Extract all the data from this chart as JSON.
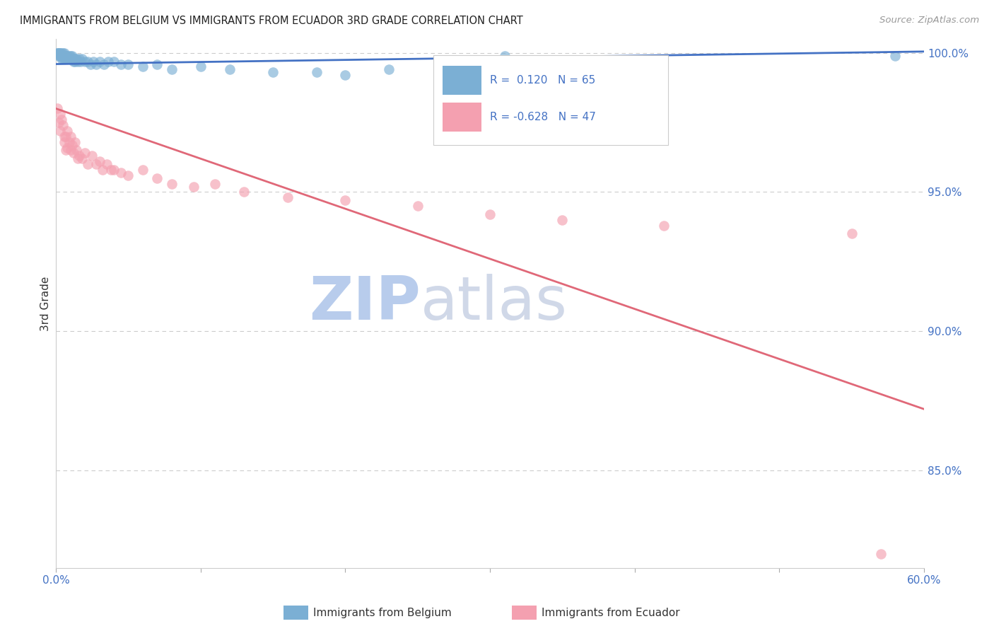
{
  "title": "IMMIGRANTS FROM BELGIUM VS IMMIGRANTS FROM ECUADOR 3RD GRADE CORRELATION CHART",
  "source": "Source: ZipAtlas.com",
  "ylabel": "3rd Grade",
  "xlabel_belgium": "Immigrants from Belgium",
  "xlabel_ecuador": "Immigrants from Ecuador",
  "xlim": [
    0.0,
    0.6
  ],
  "ylim": [
    0.815,
    1.005
  ],
  "xtick_positions": [
    0.0,
    0.1,
    0.2,
    0.3,
    0.4,
    0.5,
    0.6
  ],
  "yticks_right": [
    1.0,
    0.95,
    0.9,
    0.85
  ],
  "ytick_labels_right": [
    "100.0%",
    "95.0%",
    "90.0%",
    "85.0%"
  ],
  "R_belgium": 0.12,
  "N_belgium": 65,
  "R_ecuador": -0.628,
  "N_ecuador": 47,
  "belgium_color": "#7bafd4",
  "ecuador_color": "#f4a0b0",
  "belgium_line_color": "#4472c4",
  "ecuador_line_color": "#e06878",
  "watermark_zip": "ZIP",
  "watermark_atlas": "atlas",
  "watermark_color": "#ccd8ee",
  "grid_color": "#cccccc",
  "belgium_x": [
    0.001,
    0.001,
    0.002,
    0.002,
    0.002,
    0.003,
    0.003,
    0.003,
    0.003,
    0.004,
    0.004,
    0.004,
    0.004,
    0.005,
    0.005,
    0.005,
    0.005,
    0.006,
    0.006,
    0.006,
    0.006,
    0.007,
    0.007,
    0.007,
    0.008,
    0.008,
    0.008,
    0.009,
    0.009,
    0.01,
    0.01,
    0.011,
    0.011,
    0.012,
    0.012,
    0.013,
    0.013,
    0.014,
    0.015,
    0.016,
    0.017,
    0.018,
    0.02,
    0.022,
    0.024,
    0.026,
    0.028,
    0.03,
    0.033,
    0.036,
    0.04,
    0.045,
    0.05,
    0.06,
    0.07,
    0.08,
    0.1,
    0.12,
    0.15,
    0.18,
    0.2,
    0.23,
    0.28,
    0.31,
    0.58
  ],
  "belgium_y": [
    1.0,
    1.0,
    1.0,
    1.0,
    0.999,
    1.0,
    1.0,
    0.999,
    0.999,
    1.0,
    0.999,
    0.999,
    0.998,
    1.0,
    0.999,
    0.999,
    0.998,
    1.0,
    0.999,
    0.999,
    0.998,
    0.999,
    0.999,
    0.998,
    0.999,
    0.998,
    0.998,
    0.999,
    0.998,
    0.999,
    0.998,
    0.999,
    0.998,
    0.998,
    0.997,
    0.998,
    0.997,
    0.998,
    0.997,
    0.998,
    0.997,
    0.998,
    0.997,
    0.997,
    0.996,
    0.997,
    0.996,
    0.997,
    0.996,
    0.997,
    0.997,
    0.996,
    0.996,
    0.995,
    0.996,
    0.994,
    0.995,
    0.994,
    0.993,
    0.993,
    0.992,
    0.994,
    0.993,
    0.999,
    0.999
  ],
  "ecuador_x": [
    0.001,
    0.002,
    0.003,
    0.003,
    0.004,
    0.005,
    0.006,
    0.006,
    0.007,
    0.007,
    0.008,
    0.008,
    0.009,
    0.01,
    0.01,
    0.011,
    0.012,
    0.013,
    0.014,
    0.015,
    0.016,
    0.018,
    0.02,
    0.022,
    0.025,
    0.028,
    0.03,
    0.032,
    0.035,
    0.038,
    0.04,
    0.045,
    0.05,
    0.06,
    0.07,
    0.08,
    0.095,
    0.11,
    0.13,
    0.16,
    0.2,
    0.25,
    0.3,
    0.35,
    0.42,
    0.55,
    0.57
  ],
  "ecuador_y": [
    0.98,
    0.975,
    0.978,
    0.972,
    0.976,
    0.974,
    0.97,
    0.968,
    0.97,
    0.965,
    0.972,
    0.966,
    0.968,
    0.97,
    0.965,
    0.967,
    0.964,
    0.968,
    0.965,
    0.962,
    0.963,
    0.962,
    0.964,
    0.96,
    0.963,
    0.96,
    0.961,
    0.958,
    0.96,
    0.958,
    0.958,
    0.957,
    0.956,
    0.958,
    0.955,
    0.953,
    0.952,
    0.953,
    0.95,
    0.948,
    0.947,
    0.945,
    0.942,
    0.94,
    0.938,
    0.935,
    0.82
  ],
  "belgium_line_x": [
    0.0,
    0.6
  ],
  "belgium_line_y": [
    0.996,
    1.0005
  ],
  "ecuador_line_x": [
    0.0,
    0.6
  ],
  "ecuador_line_y": [
    0.98,
    0.872
  ]
}
